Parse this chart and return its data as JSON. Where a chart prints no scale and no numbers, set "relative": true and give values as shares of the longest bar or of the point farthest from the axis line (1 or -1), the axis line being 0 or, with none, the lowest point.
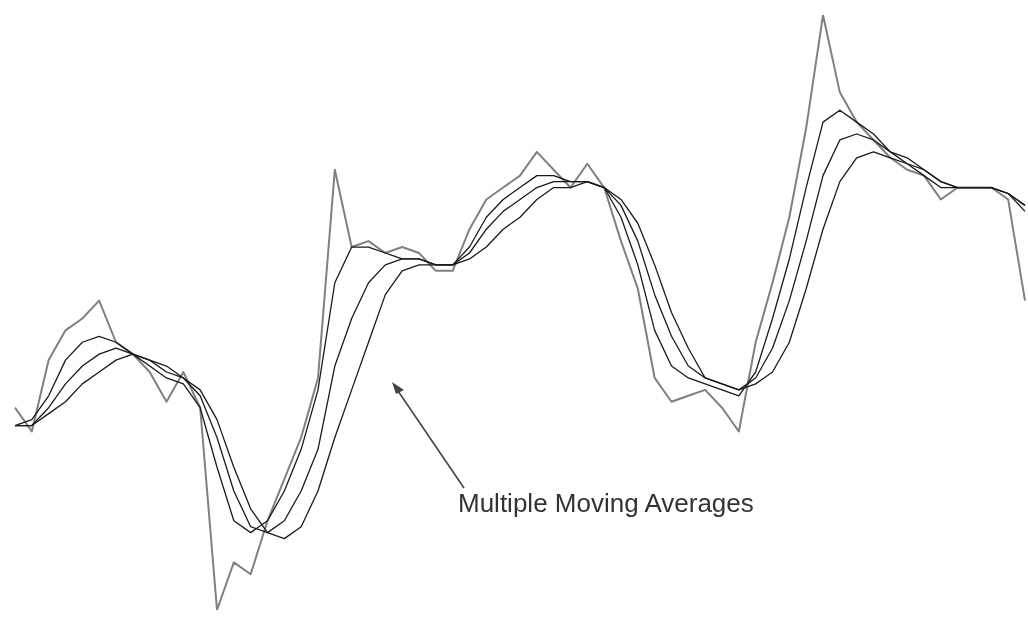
{
  "chart_data": {
    "type": "line",
    "relative": true,
    "marker": "none",
    "line_style": "solid",
    "legend": false,
    "categories": [
      null,
      null,
      null,
      null,
      null,
      null,
      null,
      null,
      null,
      null,
      null,
      null,
      null,
      null,
      null,
      null,
      null,
      null,
      null,
      null,
      null,
      null,
      null,
      null,
      null,
      null,
      null,
      null,
      null,
      null,
      null,
      null,
      null,
      null,
      null,
      null,
      null,
      null,
      null,
      null,
      null,
      null,
      null,
      null,
      null,
      null,
      null,
      null,
      null,
      null,
      null,
      null,
      null,
      null,
      null,
      null,
      null,
      null,
      null,
      null,
      null
    ],
    "series": [
      {
        "color": "#808080",
        "values": [
          0.34,
          0.3,
          0.42,
          0.47,
          0.49,
          0.52,
          0.45,
          0.43,
          0.4,
          0.35,
          0.4,
          0.34,
          0,
          0.08,
          0.06,
          0.15,
          0.22,
          0.29,
          0.39,
          0.74,
          0.61,
          0.62,
          0.6,
          0.61,
          0.6,
          0.57,
          0.57,
          0.64,
          0.69,
          0.71,
          0.73,
          0.77,
          0.74,
          0.71,
          0.75,
          0.71,
          0.62,
          0.54,
          0.39,
          0.35,
          0.36,
          0.37,
          0.34,
          0.3,
          0.45,
          0.55,
          0.66,
          0.81,
          1,
          0.87,
          0.82,
          0.79,
          0.76,
          0.74,
          0.73,
          0.69,
          0.71,
          0.71,
          0.71,
          0.69,
          0.52
        ]
      },
      {
        "color": "#1a1a1a",
        "values": [
          0.31,
          0.32,
          0.36,
          0.42,
          0.45,
          0.46,
          0.45,
          0.43,
          0.41,
          0.39,
          0.38,
          0.34,
          0.24,
          0.15,
          0.13,
          0.15,
          0.2,
          0.27,
          0.37,
          0.55,
          0.61,
          0.61,
          0.6,
          0.59,
          0.59,
          0.58,
          0.58,
          0.61,
          0.66,
          0.69,
          0.71,
          0.73,
          0.73,
          0.72,
          0.72,
          0.71,
          0.66,
          0.58,
          0.47,
          0.41,
          0.39,
          0.38,
          0.37,
          0.36,
          0.4,
          0.49,
          0.59,
          0.71,
          0.82,
          0.84,
          0.82,
          0.8,
          0.77,
          0.76,
          0.74,
          0.72,
          0.71,
          0.71,
          0.71,
          0.7,
          0.67
        ]
      },
      {
        "color": "#1a1a1a",
        "values": [
          0.31,
          0.31,
          0.34,
          0.38,
          0.41,
          0.43,
          0.44,
          0.43,
          0.42,
          0.4,
          0.39,
          0.36,
          0.29,
          0.2,
          0.14,
          0.13,
          0.15,
          0.2,
          0.27,
          0.41,
          0.49,
          0.55,
          0.58,
          0.59,
          0.59,
          0.58,
          0.58,
          0.6,
          0.64,
          0.67,
          0.69,
          0.71,
          0.72,
          0.72,
          0.72,
          0.71,
          0.68,
          0.62,
          0.53,
          0.46,
          0.41,
          0.39,
          0.38,
          0.37,
          0.39,
          0.44,
          0.52,
          0.62,
          0.73,
          0.79,
          0.8,
          0.79,
          0.77,
          0.75,
          0.74,
          0.72,
          0.71,
          0.71,
          0.71,
          0.7,
          0.68
        ]
      },
      {
        "color": "#1a1a1a",
        "values": [
          0.31,
          0.31,
          0.33,
          0.35,
          0.38,
          0.4,
          0.42,
          0.43,
          0.42,
          0.41,
          0.39,
          0.37,
          0.32,
          0.24,
          0.17,
          0.13,
          0.12,
          0.14,
          0.2,
          0.29,
          0.37,
          0.45,
          0.53,
          0.57,
          0.58,
          0.58,
          0.58,
          0.59,
          0.61,
          0.64,
          0.66,
          0.69,
          0.71,
          0.71,
          0.72,
          0.71,
          0.69,
          0.65,
          0.58,
          0.5,
          0.44,
          0.39,
          0.38,
          0.37,
          0.38,
          0.4,
          0.45,
          0.54,
          0.64,
          0.72,
          0.76,
          0.77,
          0.76,
          0.75,
          0.73,
          0.71,
          0.71,
          0.71,
          0.71,
          0.7,
          0.68
        ]
      }
    ],
    "annotations": [
      "Multiple Moving Averages"
    ]
  }
}
